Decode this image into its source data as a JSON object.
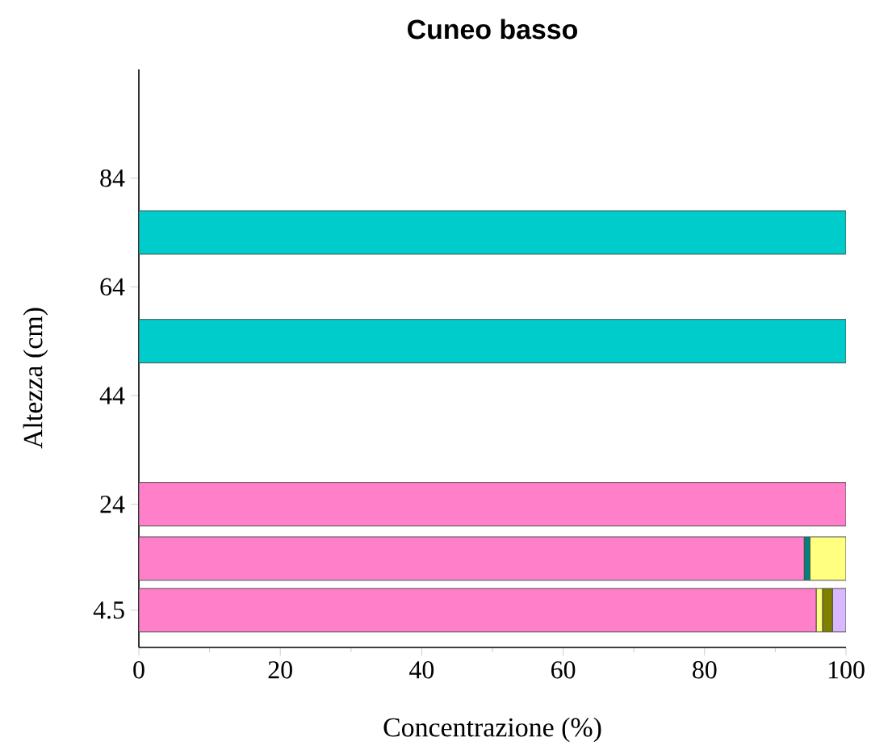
{
  "chart_data": {
    "type": "bar",
    "title": "Cuneo basso",
    "xlabel": "Concentrazione (%)",
    "ylabel": "Altezza (cm)",
    "orientation": "horizontal",
    "stacked": true,
    "x": [
      4.5,
      14,
      24,
      54,
      74
    ],
    "series": [
      {
        "color": "#ff80c8",
        "values": [
          95.8,
          94.1,
          100,
          null,
          null
        ]
      },
      {
        "color": "#008080",
        "values": [
          null,
          0.8,
          null,
          null,
          null
        ]
      },
      {
        "color": "#ffff80",
        "values": [
          0.9,
          5.1,
          null,
          null,
          null
        ]
      },
      {
        "color": "#808000",
        "values": [
          1.4,
          null,
          null,
          null,
          null
        ]
      },
      {
        "color": "#d8b8ff",
        "values": [
          1.9,
          null,
          null,
          null,
          null
        ]
      },
      {
        "color": "#00cccc",
        "values": [
          null,
          null,
          null,
          100,
          100
        ]
      }
    ],
    "xlim": [
      0,
      100
    ],
    "xticks": [
      0,
      20,
      40,
      60,
      80,
      100
    ],
    "ylim": [
      -2.35,
      104
    ],
    "yticks": [
      4.5,
      24,
      44,
      64,
      84
    ]
  }
}
